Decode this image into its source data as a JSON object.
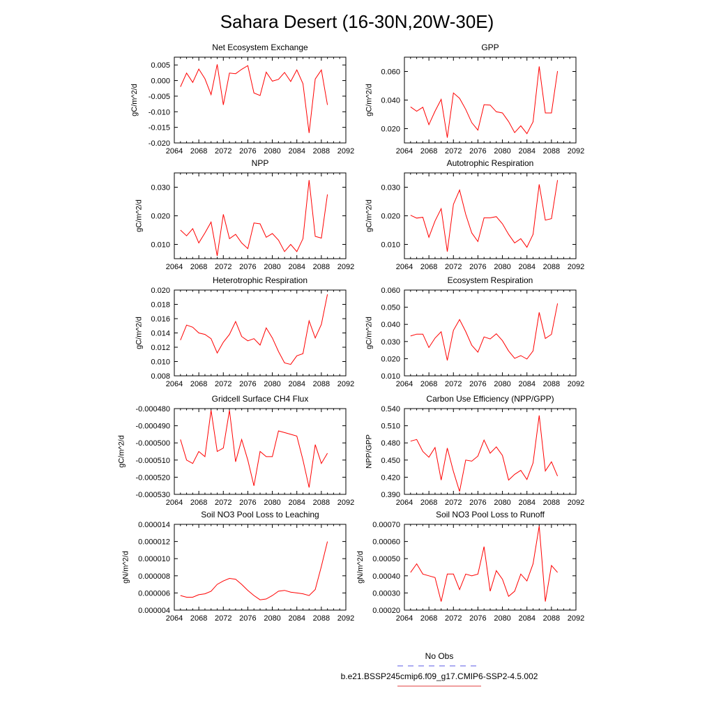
{
  "figure": {
    "title": "Sahara Desert (16-30N,20W-30E)",
    "legend": [
      {
        "label": "No Obs",
        "color": "#5a5ae6",
        "style": "dashed"
      },
      {
        "label": "b.e21.BSSP245cmip6.f09_g17.CMIP6-SSP2-4.5.002",
        "color": "#e23c3c",
        "style": "solid"
      }
    ]
  },
  "chart_data": [
    {
      "type": "line",
      "title": "Net Ecosystem Exchange",
      "ylabel": "gC/m^2/d",
      "xlim": [
        2064,
        2092
      ],
      "xticks": [
        "2064",
        "2068",
        "2072",
        "2076",
        "2080",
        "2084",
        "2088",
        "2092"
      ],
      "ylim": [
        -0.02,
        0.0075
      ],
      "yticks": [
        "0.005",
        "0.000",
        "-0.005",
        "-0.010",
        "-0.015",
        "-0.020"
      ],
      "line_color": "#ff0000",
      "x": [
        2065,
        2066,
        2067,
        2068,
        2069,
        2070,
        2071,
        2072,
        2073,
        2074,
        2075,
        2076,
        2077,
        2078,
        2079,
        2080,
        2081,
        2082,
        2083,
        2084,
        2085,
        2086,
        2087,
        2088,
        2089
      ],
      "y": [
        -0.002,
        0.0024,
        -0.0006,
        0.0037,
        0.0006,
        -0.0045,
        0.0052,
        -0.0078,
        0.0024,
        0.0022,
        0.0036,
        0.0048,
        -0.004,
        -0.0048,
        0.0027,
        -0.0002,
        0.0004,
        0.0026,
        -0.0003,
        0.0034,
        -0.001,
        -0.0168,
        0.0005,
        0.0034,
        -0.0078
      ]
    },
    {
      "type": "line",
      "title": "GPP",
      "ylabel": "gC/m^2/d",
      "xlim": [
        2064,
        2092
      ],
      "xticks": [
        "2064",
        "2068",
        "2072",
        "2076",
        "2080",
        "2084",
        "2088",
        "2092"
      ],
      "ylim": [
        0.01,
        0.07
      ],
      "yticks": [
        "0.060",
        "0.040",
        "0.020"
      ],
      "line_color": "#ff0000",
      "x": [
        2065,
        2066,
        2067,
        2068,
        2069,
        2070,
        2071,
        2072,
        2073,
        2074,
        2075,
        2076,
        2077,
        2078,
        2079,
        2080,
        2081,
        2082,
        2083,
        2084,
        2085,
        2086,
        2087,
        2088,
        2089
      ],
      "y": [
        0.0352,
        0.0322,
        0.035,
        0.0228,
        0.0322,
        0.0405,
        0.0137,
        0.045,
        0.0412,
        0.0335,
        0.0242,
        0.019,
        0.0368,
        0.0365,
        0.0318,
        0.031,
        0.025,
        0.0172,
        0.022,
        0.0165,
        0.0248,
        0.0635,
        0.031,
        0.031,
        0.0603
      ]
    },
    {
      "type": "line",
      "title": "NPP",
      "ylabel": "gC/m^2/d",
      "xlim": [
        2064,
        2092
      ],
      "xticks": [
        "2064",
        "2068",
        "2072",
        "2076",
        "2080",
        "2084",
        "2088",
        "2092"
      ],
      "ylim": [
        0.005,
        0.035
      ],
      "yticks": [
        "0.030",
        "0.020",
        "0.010"
      ],
      "line_color": "#ff0000",
      "x": [
        2065,
        2066,
        2067,
        2068,
        2069,
        2070,
        2071,
        2072,
        2073,
        2074,
        2075,
        2076,
        2077,
        2078,
        2079,
        2080,
        2081,
        2082,
        2083,
        2084,
        2085,
        2086,
        2087,
        2088,
        2089
      ],
      "y": [
        0.015,
        0.013,
        0.0155,
        0.0105,
        0.014,
        0.0178,
        0.006,
        0.0205,
        0.012,
        0.0135,
        0.0105,
        0.0085,
        0.0175,
        0.0172,
        0.0125,
        0.0138,
        0.0115,
        0.0075,
        0.01,
        0.0075,
        0.012,
        0.0325,
        0.0128,
        0.0122,
        0.0275
      ]
    },
    {
      "type": "line",
      "title": "Autotrophic Respiration",
      "ylabel": "gC/m^2/d",
      "xlim": [
        2064,
        2092
      ],
      "xticks": [
        "2064",
        "2068",
        "2072",
        "2076",
        "2080",
        "2084",
        "2088",
        "2092"
      ],
      "ylim": [
        0.005,
        0.035
      ],
      "yticks": [
        "0.030",
        "0.020",
        "0.010"
      ],
      "line_color": "#ff0000",
      "x": [
        2065,
        2066,
        2067,
        2068,
        2069,
        2070,
        2071,
        2072,
        2073,
        2074,
        2075,
        2076,
        2077,
        2078,
        2079,
        2080,
        2081,
        2082,
        2083,
        2084,
        2085,
        2086,
        2087,
        2088,
        2089
      ],
      "y": [
        0.0202,
        0.0192,
        0.0195,
        0.0125,
        0.0182,
        0.0225,
        0.0075,
        0.024,
        0.029,
        0.0205,
        0.014,
        0.011,
        0.0193,
        0.0193,
        0.0197,
        0.0172,
        0.0135,
        0.0105,
        0.012,
        0.009,
        0.0135,
        0.031,
        0.0185,
        0.019,
        0.0325
      ]
    },
    {
      "type": "line",
      "title": "Heterotrophic Respiration",
      "ylabel": "gC/m^2/d",
      "xlim": [
        2064,
        2092
      ],
      "xticks": [
        "2064",
        "2068",
        "2072",
        "2076",
        "2080",
        "2084",
        "2088",
        "2092"
      ],
      "ylim": [
        0.008,
        0.02
      ],
      "yticks": [
        "0.020",
        "0.018",
        "0.016",
        "0.014",
        "0.012",
        "0.010",
        "0.008"
      ],
      "line_color": "#ff0000",
      "x": [
        2065,
        2066,
        2067,
        2068,
        2069,
        2070,
        2071,
        2072,
        2073,
        2074,
        2075,
        2076,
        2077,
        2078,
        2079,
        2080,
        2081,
        2082,
        2083,
        2084,
        2085,
        2086,
        2087,
        2088,
        2089
      ],
      "y": [
        0.013,
        0.0151,
        0.0148,
        0.014,
        0.0138,
        0.0132,
        0.0112,
        0.0127,
        0.0138,
        0.0156,
        0.0135,
        0.0129,
        0.0132,
        0.0123,
        0.0147,
        0.0133,
        0.0114,
        0.0098,
        0.0096,
        0.0108,
        0.0111,
        0.0157,
        0.0133,
        0.0152,
        0.0194
      ]
    },
    {
      "type": "line",
      "title": "Ecosystem Respiration",
      "ylabel": "gC/m^2/d",
      "xlim": [
        2064,
        2092
      ],
      "xticks": [
        "2064",
        "2068",
        "2072",
        "2076",
        "2080",
        "2084",
        "2088",
        "2092"
      ],
      "ylim": [
        0.01,
        0.06
      ],
      "yticks": [
        "0.060",
        "0.050",
        "0.040",
        "0.030",
        "0.020",
        "0.010"
      ],
      "line_color": "#ff0000",
      "x": [
        2065,
        2066,
        2067,
        2068,
        2069,
        2070,
        2071,
        2072,
        2073,
        2074,
        2075,
        2076,
        2077,
        2078,
        2079,
        2080,
        2081,
        2082,
        2083,
        2084,
        2085,
        2086,
        2087,
        2088,
        2089
      ],
      "y": [
        0.0332,
        0.0343,
        0.0343,
        0.0265,
        0.032,
        0.0357,
        0.019,
        0.0365,
        0.0428,
        0.0358,
        0.0278,
        0.0238,
        0.0327,
        0.0315,
        0.0345,
        0.0305,
        0.0245,
        0.0202,
        0.0218,
        0.0198,
        0.0245,
        0.047,
        0.0318,
        0.0342,
        0.0522
      ]
    },
    {
      "type": "line",
      "title": "Gridcell Surface CH4 Flux",
      "ylabel": "gC/m^2/d",
      "xlim": [
        2064,
        2092
      ],
      "xticks": [
        "2064",
        "2068",
        "2072",
        "2076",
        "2080",
        "2084",
        "2088",
        "2092"
      ],
      "ylim": [
        -0.00053,
        -0.00048
      ],
      "yticks": [
        "-0.000480",
        "-0.000490",
        "-0.000500",
        "-0.000510",
        "-0.000520",
        "-0.000530"
      ],
      "line_color": "#ff0000",
      "x": [
        2065,
        2066,
        2067,
        2068,
        2069,
        2070,
        2071,
        2072,
        2073,
        2074,
        2075,
        2076,
        2077,
        2078,
        2079,
        2080,
        2081,
        2082,
        2083,
        2084,
        2085,
        2086,
        2087,
        2088,
        2089
      ],
      "y": [
        -0.000498,
        -0.00051,
        -0.000512,
        -0.000505,
        -0.000508,
        -0.000481,
        -0.000505,
        -0.000503,
        -0.000481,
        -0.000511,
        -0.000498,
        -0.00051,
        -0.000525,
        -0.000505,
        -0.000508,
        -0.000508,
        -0.000493,
        -0.000494,
        -0.000495,
        -0.000496,
        -0.00051,
        -0.000526,
        -0.000501,
        -0.000512,
        -0.000506
      ]
    },
    {
      "type": "line",
      "title": "Carbon Use Efficiency (NPP/GPP)",
      "ylabel": "NPP/GPP",
      "xlim": [
        2064,
        2092
      ],
      "xticks": [
        "2064",
        "2068",
        "2072",
        "2076",
        "2080",
        "2084",
        "2088",
        "2092"
      ],
      "ylim": [
        0.39,
        0.54
      ],
      "yticks": [
        "0.540",
        "0.510",
        "0.480",
        "0.450",
        "0.420",
        "0.390"
      ],
      "line_color": "#ff0000",
      "x": [
        2065,
        2066,
        2067,
        2068,
        2069,
        2070,
        2071,
        2072,
        2073,
        2074,
        2075,
        2076,
        2077,
        2078,
        2079,
        2080,
        2081,
        2082,
        2083,
        2084,
        2085,
        2086,
        2087,
        2088,
        2089
      ],
      "y": [
        0.483,
        0.486,
        0.465,
        0.455,
        0.472,
        0.415,
        0.471,
        0.43,
        0.395,
        0.45,
        0.448,
        0.457,
        0.485,
        0.462,
        0.473,
        0.458,
        0.415,
        0.425,
        0.432,
        0.416,
        0.445,
        0.528,
        0.431,
        0.447,
        0.422
      ]
    },
    {
      "type": "line",
      "title": "Soil NO3 Pool Loss to Leaching",
      "ylabel": "gN/m^2/d",
      "xlim": [
        2064,
        2092
      ],
      "xticks": [
        "2064",
        "2068",
        "2072",
        "2076",
        "2080",
        "2084",
        "2088",
        "2092"
      ],
      "ylim": [
        4e-06,
        1.4e-05
      ],
      "yticks": [
        "0.000014",
        "0.000012",
        "0.000010",
        "0.000008",
        "0.000006",
        "0.000004"
      ],
      "line_color": "#ff0000",
      "x": [
        2065,
        2066,
        2067,
        2068,
        2069,
        2070,
        2071,
        2072,
        2073,
        2074,
        2075,
        2076,
        2077,
        2078,
        2079,
        2080,
        2081,
        2082,
        2083,
        2084,
        2085,
        2086,
        2087,
        2088,
        2089
      ],
      "y": [
        5.7e-06,
        5.5e-06,
        5.5e-06,
        5.8e-06,
        5.9e-06,
        6.2e-06,
        7e-06,
        7.4e-06,
        7.7e-06,
        7.6e-06,
        7e-06,
        6.3e-06,
        5.7e-06,
        5.2e-06,
        5.3e-06,
        5.7e-06,
        6.2e-06,
        6.3e-06,
        6.1e-06,
        6e-06,
        5.9e-06,
        5.7e-06,
        6.4e-06,
        9.1e-06,
        1.2e-05
      ]
    },
    {
      "type": "line",
      "title": "Soil NO3 Pool Loss to Runoff",
      "ylabel": "gN/m^2/d",
      "xlim": [
        2064,
        2092
      ],
      "xticks": [
        "2064",
        "2068",
        "2072",
        "2076",
        "2080",
        "2084",
        "2088",
        "2092"
      ],
      "ylim": [
        0.0002,
        0.0007
      ],
      "yticks": [
        "0.00070",
        "0.00060",
        "0.00050",
        "0.00040",
        "0.00030",
        "0.00020"
      ],
      "line_color": "#ff0000",
      "x": [
        2065,
        2066,
        2067,
        2068,
        2069,
        2070,
        2071,
        2072,
        2073,
        2074,
        2075,
        2076,
        2077,
        2078,
        2079,
        2080,
        2081,
        2082,
        2083,
        2084,
        2085,
        2086,
        2087,
        2088,
        2089
      ],
      "y": [
        0.00042,
        0.00047,
        0.00041,
        0.0004,
        0.00039,
        0.00025,
        0.00041,
        0.00041,
        0.00032,
        0.00041,
        0.0004,
        0.00041,
        0.00057,
        0.00031,
        0.00043,
        0.00038,
        0.00028,
        0.00031,
        0.00041,
        0.00037,
        0.00047,
        0.00069,
        0.00025,
        0.00046,
        0.00042
      ]
    }
  ]
}
